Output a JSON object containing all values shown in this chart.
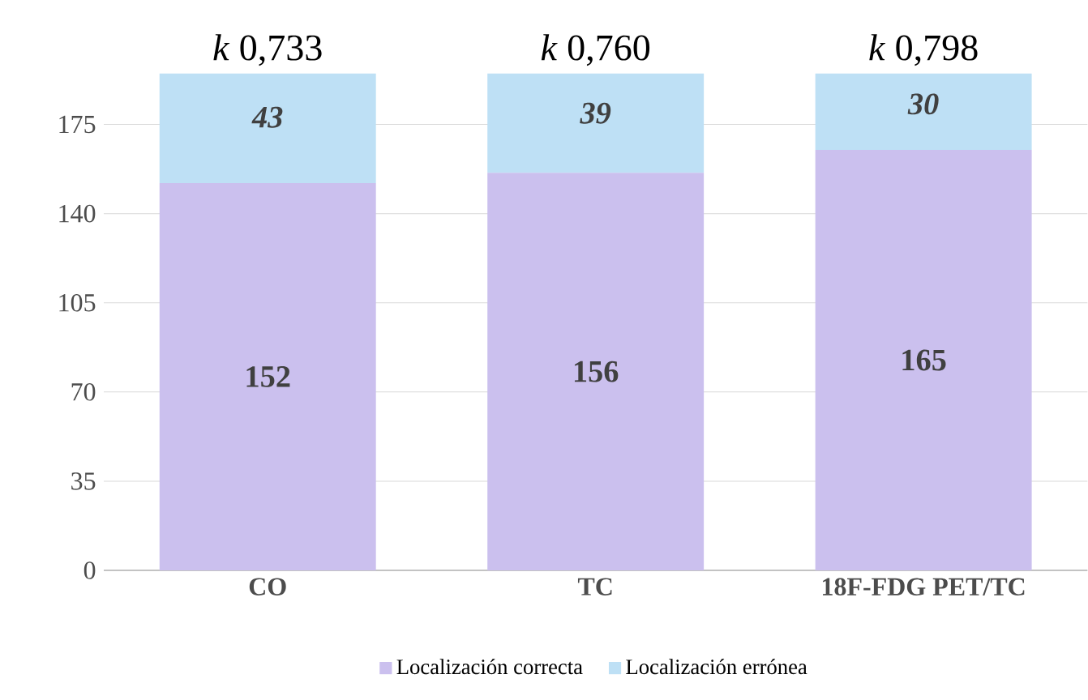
{
  "chart_data": {
    "type": "bar",
    "stacked": true,
    "categories": [
      "CO",
      "TC",
      "18F-FDG PET/TC"
    ],
    "series": [
      {
        "name": "Localización correcta",
        "color": "#cbc0ee",
        "values": [
          152,
          156,
          165
        ]
      },
      {
        "name": "Localización errónea",
        "color": "#bee0f5",
        "values": [
          43,
          39,
          30
        ]
      }
    ],
    "ylim": [
      0,
      195
    ],
    "yticks": [
      0,
      35,
      70,
      105,
      140,
      175
    ],
    "grid": "y",
    "legend": "bottom",
    "data_labels": true,
    "annotations": [
      {
        "text": "*k* 0,733",
        "x": "CO",
        "y": 195
      },
      {
        "text": "*k* 0,760",
        "x": "TC",
        "y": 195
      },
      {
        "text": "*k* 0,798",
        "x": "18F-FDG PET/TC",
        "y": 195
      }
    ]
  }
}
